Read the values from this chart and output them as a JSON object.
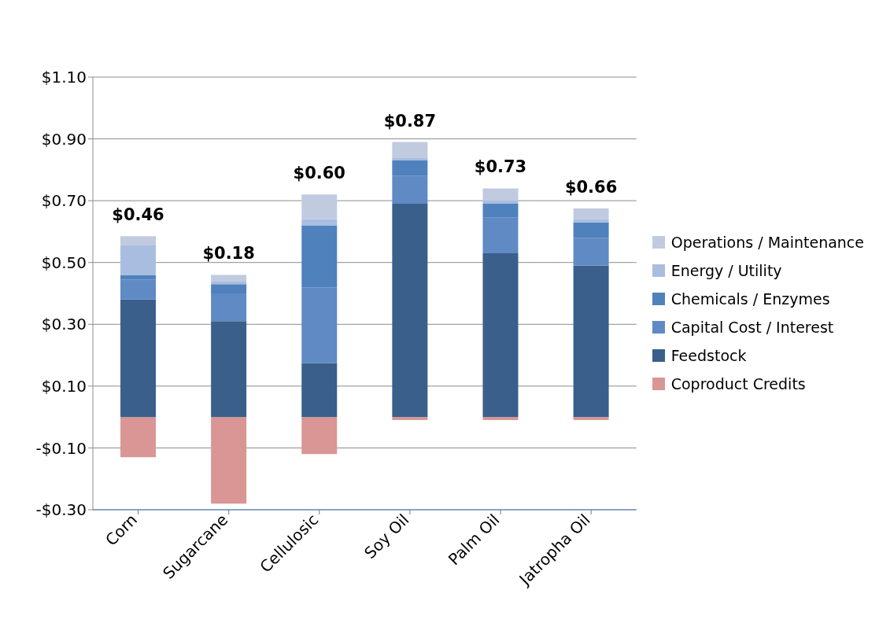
{
  "chart_data": {
    "type": "bar",
    "stacked": true,
    "categories": [
      "Corn",
      "Sugarcane",
      "Cellulosic",
      "Soy Oil",
      "Palm Oil",
      "Jatropha Oil"
    ],
    "series": [
      {
        "name": "Coproduct Credits",
        "color": "#d99694",
        "values": [
          -0.13,
          -0.28,
          -0.12,
          -0.01,
          -0.01,
          -0.01
        ]
      },
      {
        "name": "Feedstock",
        "color": "#3a5f8b",
        "values": [
          0.38,
          0.31,
          0.175,
          0.69,
          0.53,
          0.49
        ]
      },
      {
        "name": "Capital Cost / Interest",
        "color": "#5f8ac4",
        "values": [
          0.065,
          0.09,
          0.245,
          0.09,
          0.115,
          0.09
        ]
      },
      {
        "name": "Chemicals / Enzymes",
        "color": "#4f81bd",
        "values": [
          0.015,
          0.03,
          0.2,
          0.05,
          0.045,
          0.05
        ]
      },
      {
        "name": "Energy / Utility",
        "color": "#a9bde0",
        "values": [
          0.095,
          0.01,
          0.02,
          0.01,
          0.01,
          0.01
        ]
      },
      {
        "name": "Operations / Maintenance",
        "color": "#c0cbe0",
        "values": [
          0.03,
          0.02,
          0.08,
          0.05,
          0.04,
          0.035
        ]
      }
    ],
    "totals": [
      "$0.46",
      "$0.18",
      "$0.60",
      "$0.87",
      "$0.73",
      "$0.66"
    ],
    "ylim": [
      -0.3,
      1.1
    ],
    "yticks": [
      {
        "value": -0.3,
        "label": "-$0.30"
      },
      {
        "value": -0.1,
        "label": "-$0.10"
      },
      {
        "value": 0.1,
        "label": "$0.10"
      },
      {
        "value": 0.3,
        "label": "$0.30"
      },
      {
        "value": 0.5,
        "label": "$0.50"
      },
      {
        "value": 0.7,
        "label": "$0.70"
      },
      {
        "value": 0.9,
        "label": "$0.90"
      },
      {
        "value": 1.1,
        "label": "$1.10"
      }
    ],
    "grid": "y",
    "legend": "right"
  }
}
